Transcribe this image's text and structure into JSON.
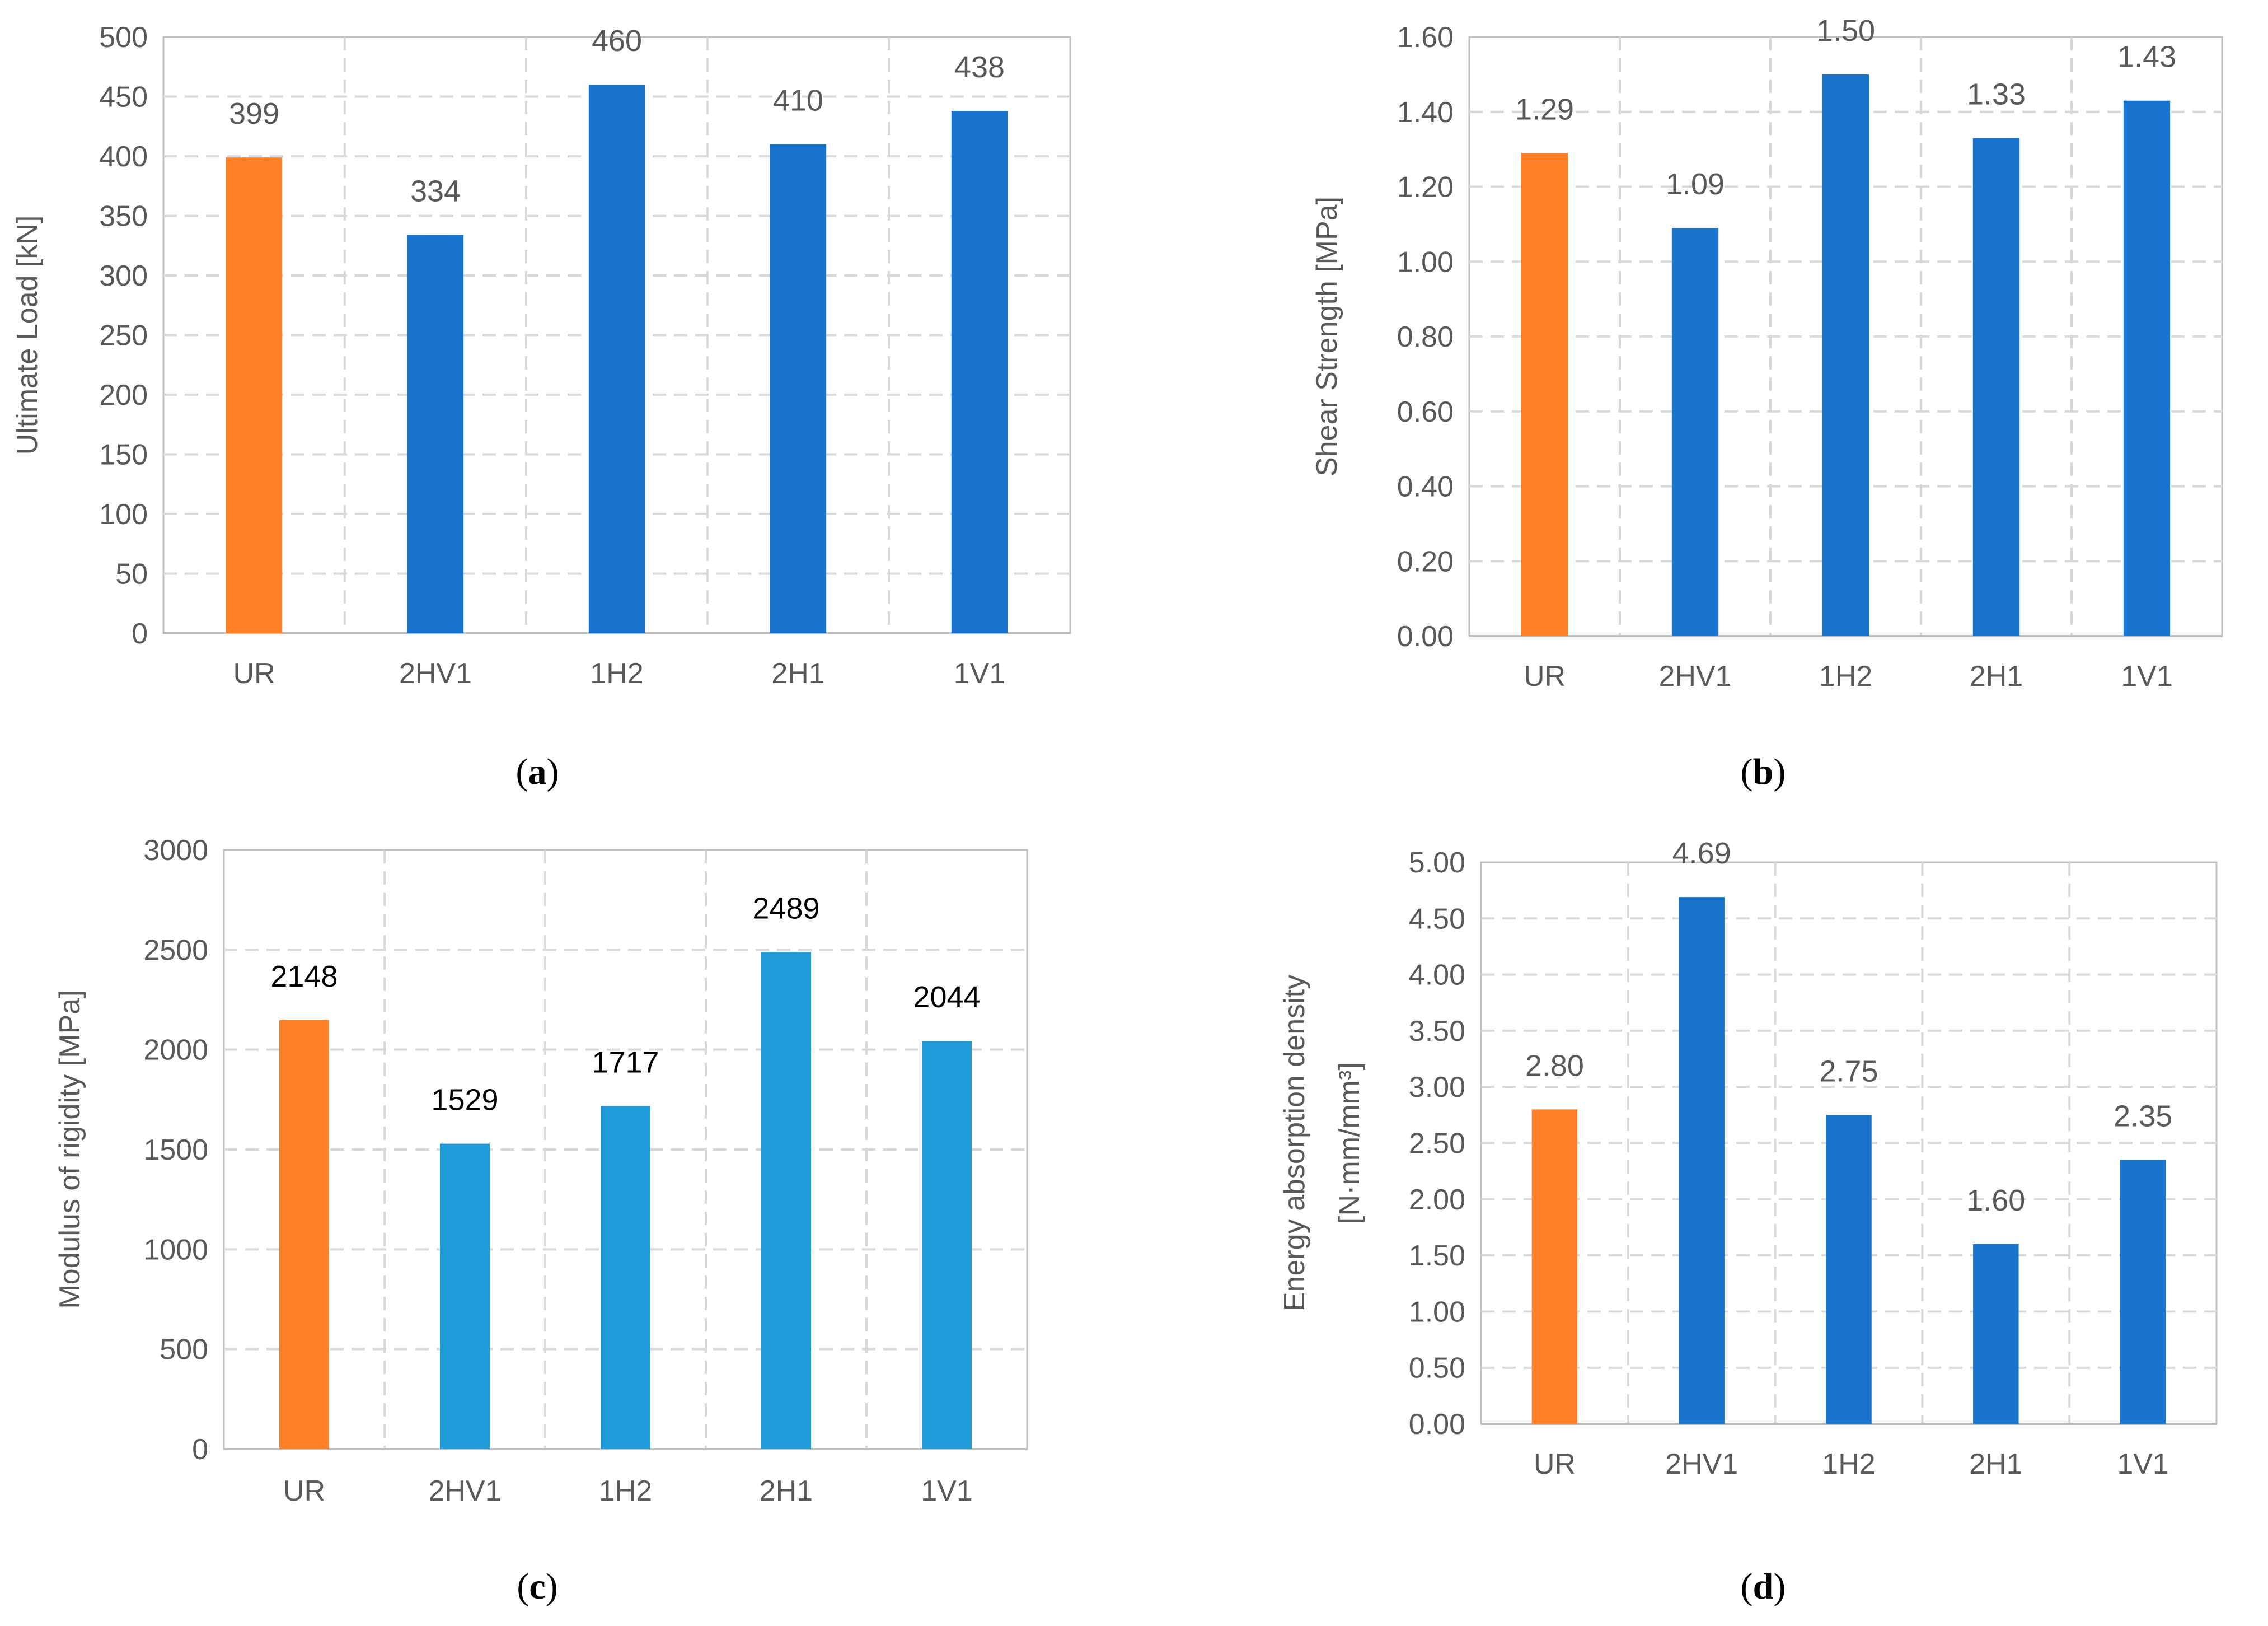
{
  "colors": {
    "highlight": "#FF7F27",
    "blue": "#1874CD",
    "lightblue": "#1F9BD9",
    "grid": "#D9D9D9",
    "axis": "#BFBFBF",
    "tick_text": "#595959"
  },
  "chart_data": [
    {
      "id": "a",
      "type": "bar",
      "caption_letter": "a",
      "ylabel": "Ultimate Load [kN]",
      "ylabel_line2": "",
      "categories": [
        "UR",
        "2HV1",
        "1H2",
        "2H1",
        "1V1"
      ],
      "values": [
        399,
        334,
        460,
        410,
        438
      ],
      "labels": [
        "399",
        "334",
        "460",
        "410",
        "438"
      ],
      "yticks": [
        "0",
        "50",
        "100",
        "150",
        "200",
        "250",
        "300",
        "350",
        "400",
        "450",
        "500"
      ],
      "ylim": [
        0,
        500
      ],
      "ystep": 50,
      "grid": true,
      "bar_colors": [
        "highlight",
        "blue",
        "blue",
        "blue",
        "blue"
      ],
      "label_color": "#595959"
    },
    {
      "id": "b",
      "type": "bar",
      "caption_letter": "b",
      "ylabel": "Shear Strength [MPa]",
      "ylabel_line2": "",
      "categories": [
        "UR",
        "2HV1",
        "1H2",
        "2H1",
        "1V1"
      ],
      "values": [
        1.29,
        1.09,
        1.5,
        1.33,
        1.43
      ],
      "labels": [
        "1.29",
        "1.09",
        "1.50",
        "1.33",
        "1.43"
      ],
      "yticks": [
        "0.00",
        "0.20",
        "0.40",
        "0.60",
        "0.80",
        "1.00",
        "1.20",
        "1.40",
        "1.60"
      ],
      "ylim": [
        0,
        1.6
      ],
      "ystep": 0.2,
      "grid": true,
      "bar_colors": [
        "highlight",
        "blue",
        "blue",
        "blue",
        "blue"
      ],
      "label_color": "#595959"
    },
    {
      "id": "c",
      "type": "bar",
      "caption_letter": "c",
      "ylabel": "Modulus of rigidity [MPa]",
      "ylabel_line2": "",
      "categories": [
        "UR",
        "2HV1",
        "1H2",
        "2H1",
        "1V1"
      ],
      "values": [
        2148,
        1529,
        1717,
        2489,
        2044
      ],
      "labels": [
        "2148",
        "1529",
        "1717",
        "2489",
        "2044"
      ],
      "yticks": [
        "0",
        "500",
        "1000",
        "1500",
        "2000",
        "2500",
        "3000"
      ],
      "ylim": [
        0,
        3000
      ],
      "ystep": 500,
      "grid": true,
      "bar_colors": [
        "highlight",
        "lightblue",
        "lightblue",
        "lightblue",
        "lightblue"
      ],
      "label_color": "#000000"
    },
    {
      "id": "d",
      "type": "bar",
      "caption_letter": "d",
      "ylabel": "Energy absorption density",
      "ylabel_line2": "[N·mm/mm³]",
      "categories": [
        "UR",
        "2HV1",
        "1H2",
        "2H1",
        "1V1"
      ],
      "values": [
        2.8,
        4.69,
        2.75,
        1.6,
        2.35
      ],
      "labels": [
        "2.80",
        "4.69",
        "2.75",
        "1.60",
        "2.35"
      ],
      "yticks": [
        "0.00",
        "0.50",
        "1.00",
        "1.50",
        "2.00",
        "2.50",
        "3.00",
        "3.50",
        "4.00",
        "4.50",
        "5.00"
      ],
      "ylim": [
        0,
        5
      ],
      "ystep": 0.5,
      "grid": true,
      "bar_colors": [
        "highlight",
        "blue",
        "blue",
        "blue",
        "blue"
      ],
      "label_color": "#595959"
    }
  ]
}
